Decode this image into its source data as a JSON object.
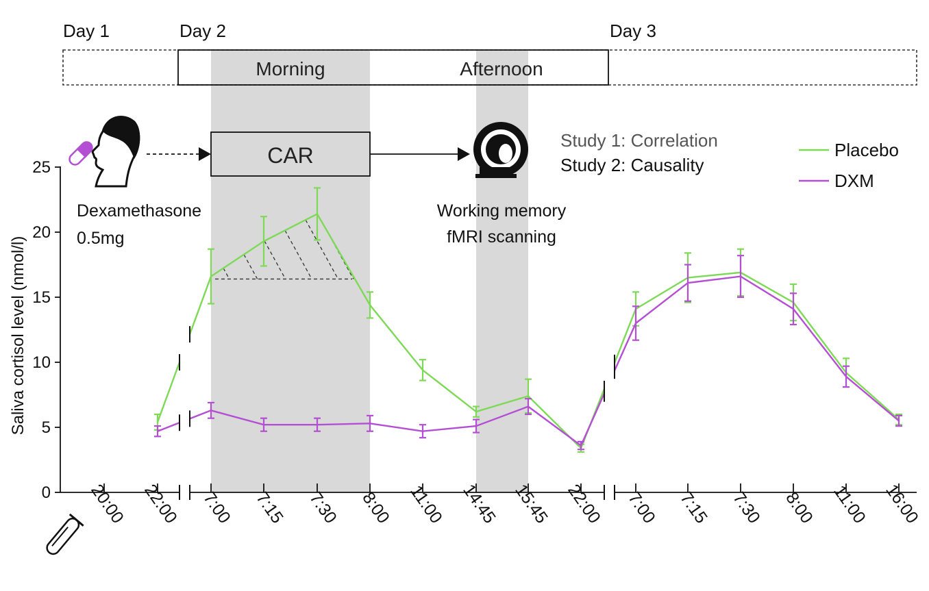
{
  "chart_data": {
    "type": "line",
    "title": "",
    "xlabel": "",
    "ylabel": "Saliva cortisol level (nmol/l)",
    "ylim": [
      0,
      25
    ],
    "yticks": [
      0,
      5,
      10,
      15,
      20,
      25
    ],
    "grid": false,
    "legend_position": "top-right",
    "categories": [
      "20:00",
      "22:00",
      "7:00",
      "7:15",
      "7:30",
      "8:00",
      "11:00",
      "14:45",
      "15:45",
      "22:00",
      "7:00",
      "7:15",
      "7:30",
      "8:00",
      "11:00",
      "16:00"
    ],
    "series": [
      {
        "name": "Placebo",
        "color": "#7ed957",
        "values": [
          null,
          5.4,
          16.6,
          19.3,
          21.4,
          14.4,
          9.4,
          6.2,
          7.4,
          3.4,
          14.1,
          16.5,
          16.9,
          14.6,
          9.2,
          5.6
        ],
        "errors": [
          null,
          0.6,
          2.1,
          1.9,
          2.0,
          1.0,
          0.8,
          0.4,
          1.3,
          0.3,
          1.3,
          1.9,
          1.8,
          1.4,
          1.1,
          0.4
        ]
      },
      {
        "name": "DXM",
        "color": "#b44fd3",
        "values": [
          null,
          4.7,
          6.3,
          5.2,
          5.2,
          5.3,
          4.7,
          5.1,
          6.6,
          3.6,
          13.0,
          16.1,
          16.6,
          14.1,
          8.9,
          5.5
        ],
        "errors": [
          null,
          0.4,
          0.6,
          0.5,
          0.5,
          0.6,
          0.5,
          0.5,
          0.6,
          0.3,
          1.3,
          1.4,
          1.6,
          1.2,
          0.8,
          0.4
        ]
      }
    ],
    "shaded_periods": [
      [
        "7:00",
        "8:00"
      ],
      [
        "14:45",
        "15:45"
      ]
    ],
    "auc_baseline": 16.4
  },
  "timeline": {
    "day1": "Day 1",
    "day2": "Day 2",
    "day3": "Day 3",
    "morning": "Morning",
    "afternoon": "Afternoon"
  },
  "annotations": {
    "car": "CAR",
    "drug_line1": "Dexamethasone",
    "drug_line2": "0.5mg",
    "scan_line1": "Working memory",
    "scan_line2": "fMRI scanning",
    "study1": "Study 1: Correlation",
    "study2": "Study 2: Causality"
  },
  "icons": {
    "pill": "pill-icon",
    "head": "person-head-icon",
    "scanner": "mri-scanner-icon",
    "tube": "test-tube-icon"
  }
}
